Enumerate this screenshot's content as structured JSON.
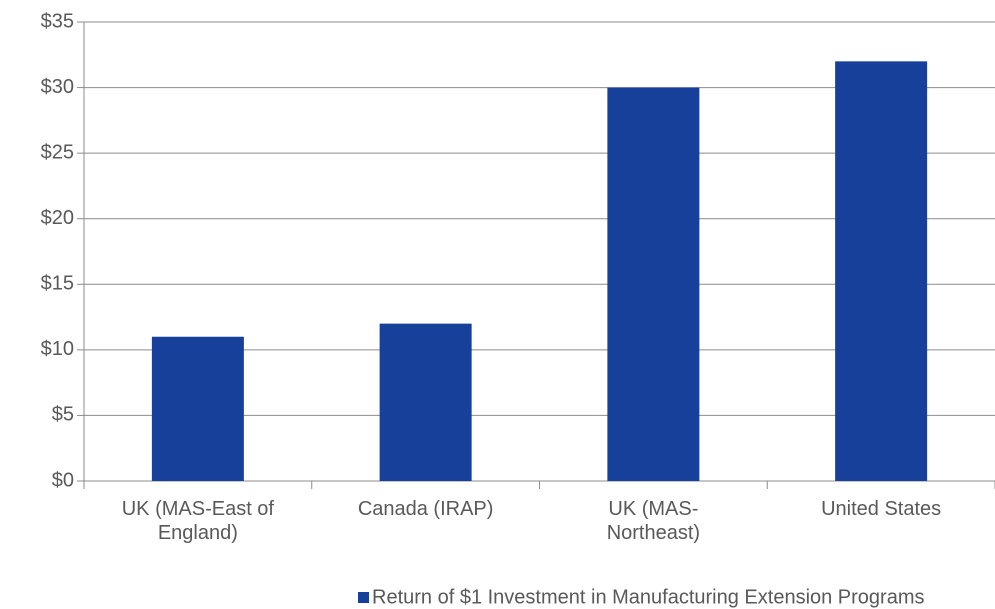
{
  "chart_data": {
    "type": "bar",
    "categories": [
      "UK (MAS-East of England)",
      "Canada (IRAP)",
      "UK (MAS-Northeast)",
      "United States"
    ],
    "series": [
      {
        "name": "Return of $1 Investment in Manufacturing Extension Programs",
        "color": "#17409a",
        "values": [
          11,
          12,
          30,
          32
        ]
      }
    ],
    "ylim": [
      0,
      35
    ],
    "yticks": [
      {
        "value": 0,
        "label": "$0"
      },
      {
        "value": 5,
        "label": "$5"
      },
      {
        "value": 10,
        "label": "$10"
      },
      {
        "value": 15,
        "label": "$15"
      },
      {
        "value": 20,
        "label": "$20"
      },
      {
        "value": 25,
        "label": "$25"
      },
      {
        "value": 30,
        "label": "$30"
      },
      {
        "value": 35,
        "label": "$35"
      }
    ],
    "grid": true,
    "legend": "bottom"
  }
}
